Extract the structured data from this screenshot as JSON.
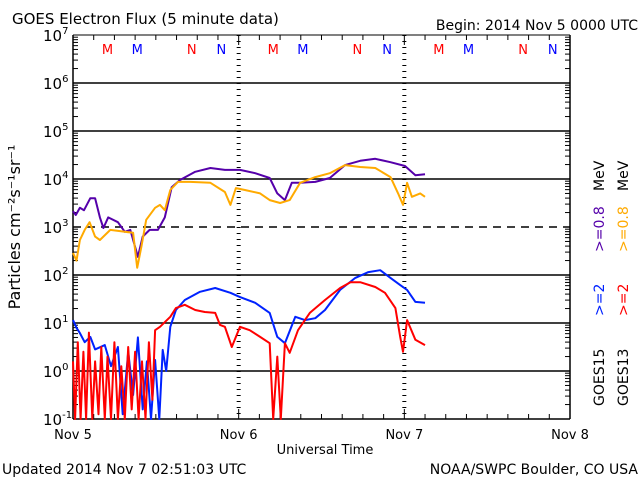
{
  "chart_data": {
    "type": "line",
    "title": "GOES Electron Flux (5 minute data)",
    "begin_label": "Begin: 2014 Nov 5 0000 UTC",
    "xlabel": "Universal Time",
    "ylabel": "Particles cm⁻²s⁻¹sr⁻¹",
    "x_unit": "hours since 2014 Nov 5 0000 UTC",
    "xlim": [
      0,
      72
    ],
    "x_ticks": [
      {
        "h": 0,
        "label": "Nov 5"
      },
      {
        "h": 24,
        "label": "Nov 6"
      },
      {
        "h": 48,
        "label": "Nov 7"
      },
      {
        "h": 72,
        "label": "Nov 8"
      }
    ],
    "y_scale": "log10",
    "ylim_log10": [
      -1,
      7
    ],
    "y_ticks": [
      {
        "exp": 7,
        "label": "7"
      },
      {
        "exp": 6,
        "label": "6"
      },
      {
        "exp": 5,
        "label": "5"
      },
      {
        "exp": 4,
        "label": "4"
      },
      {
        "exp": 3,
        "label": "3"
      },
      {
        "exp": 2,
        "label": "2"
      },
      {
        "exp": 1,
        "label": "1"
      },
      {
        "exp": 0,
        "label": "0"
      },
      {
        "exp": -1,
        "label": "-1"
      }
    ],
    "grid_solid_exp": [
      6,
      5,
      4,
      2,
      1,
      0
    ],
    "grid_dashed_exp": [
      3
    ],
    "markers": [
      {
        "h": 5.0,
        "label": "M",
        "color": "#ff0000"
      },
      {
        "h": 9.3,
        "label": "M",
        "color": "#0000ff"
      },
      {
        "h": 17.2,
        "label": "N",
        "color": "#ff0000"
      },
      {
        "h": 21.5,
        "label": "N",
        "color": "#0000ff"
      },
      {
        "h": 29.0,
        "label": "M",
        "color": "#ff0000"
      },
      {
        "h": 33.3,
        "label": "M",
        "color": "#0000ff"
      },
      {
        "h": 41.2,
        "label": "N",
        "color": "#ff0000"
      },
      {
        "h": 45.5,
        "label": "N",
        "color": "#0000ff"
      },
      {
        "h": 53.0,
        "label": "M",
        "color": "#ff0000"
      },
      {
        "h": 57.3,
        "label": "M",
        "color": "#0000ff"
      },
      {
        "h": 65.2,
        "label": "N",
        "color": "#ff0000"
      },
      {
        "h": 69.5,
        "label": "N",
        "color": "#0000ff"
      }
    ],
    "legend": {
      "placement": "right",
      "columns": [
        {
          "satellite": "GOES15",
          "entries": [
            {
              "label": ">=2",
              "color": "#0022ff"
            },
            {
              "label": ">=0.8",
              "color": "#5500aa"
            }
          ],
          "unit": "MeV"
        },
        {
          "satellite": "GOES13",
          "entries": [
            {
              "label": ">=2",
              "color": "#ff0000"
            },
            {
              "label": ">=0.8",
              "color": "#ffaa00"
            }
          ],
          "unit": "MeV"
        }
      ]
    },
    "series": [
      {
        "name": "GOES15 >=0.8 MeV",
        "color": "#5500aa",
        "h": [
          0,
          0.4,
          1,
          1.6,
          2.5,
          3.2,
          3.9,
          4.4,
          5.1,
          6.5,
          7.5,
          8.3,
          9.4,
          10.1,
          11.1,
          12.3,
          13.3,
          14.3,
          15.5,
          17.7,
          19.9,
          22.0,
          24.2,
          26.4,
          28.5,
          29.6,
          30.7,
          31.7,
          32.9,
          35.1,
          37.2,
          39.4,
          41.6,
          43.8,
          46.0,
          48.1,
          49.6,
          51.0
        ],
        "log10": [
          3.33,
          3.25,
          3.4,
          3.35,
          3.6,
          3.6,
          3.2,
          2.98,
          3.2,
          3.1,
          2.9,
          2.94,
          2.38,
          2.8,
          2.94,
          2.94,
          3.2,
          3.83,
          3.98,
          4.15,
          4.23,
          4.19,
          4.19,
          4.12,
          4.02,
          3.7,
          3.56,
          3.92,
          3.92,
          3.94,
          4.02,
          4.29,
          4.38,
          4.42,
          4.35,
          4.27,
          4.08,
          4.1
        ]
      },
      {
        "name": "GOES13 >=0.8 MeV",
        "color": "#ffaa00",
        "h": [
          0,
          0.5,
          1,
          1.7,
          2.4,
          3.2,
          3.9,
          5.4,
          7.5,
          8.7,
          9.3,
          9.9,
          10.6,
          11.9,
          12.6,
          13.3,
          14.1,
          15.2,
          17.0,
          19.9,
          22.0,
          22.8,
          23.6,
          24.9,
          27.1,
          28.5,
          30.0,
          31.4,
          32.9,
          35.1,
          37.2,
          39.4,
          41.6,
          43.8,
          46.0,
          47.1,
          47.8,
          48.4,
          49.1,
          50.3,
          51.0
        ],
        "log10": [
          2.46,
          2.3,
          2.73,
          2.94,
          3.1,
          2.8,
          2.73,
          2.94,
          2.9,
          2.88,
          2.15,
          2.58,
          3.15,
          3.4,
          3.46,
          3.35,
          3.77,
          3.94,
          3.94,
          3.92,
          3.73,
          3.46,
          3.81,
          3.77,
          3.7,
          3.56,
          3.5,
          3.56,
          3.92,
          4.04,
          4.12,
          4.29,
          4.25,
          4.23,
          4.04,
          3.7,
          3.46,
          3.92,
          3.63,
          3.7,
          3.63
        ]
      },
      {
        "name": "GOES15 >=2 MeV",
        "color": "#0022ff",
        "h": [
          0,
          0.5,
          1,
          1.7,
          2.5,
          3.2,
          4.6,
          5.5,
          6.5,
          7.2,
          8.0,
          8.7,
          9.4,
          10.1,
          10.7,
          11.3,
          11.9,
          12.5,
          13.0,
          13.5,
          14.1,
          14.9,
          16.2,
          18.4,
          20.6,
          22.8,
          24.2,
          26.4,
          28.5,
          29.6,
          30.7,
          32.2,
          33.6,
          35.1,
          36.5,
          38.7,
          40.9,
          42.8,
          44.5,
          46.0,
          47.4,
          48.4,
          49.6,
          51.0
        ],
        "log10": [
          1.06,
          0.9,
          0.79,
          0.6,
          0.71,
          0.45,
          0.54,
          0.1,
          0.5,
          -0.9,
          0.4,
          -0.5,
          0.7,
          -0.8,
          0.2,
          -1,
          0.23,
          -1,
          0.44,
          0.0,
          0.92,
          1.27,
          1.48,
          1.65,
          1.73,
          1.63,
          1.54,
          1.42,
          1.21,
          0.71,
          0.58,
          1.13,
          1.06,
          1.1,
          1.27,
          1.69,
          1.94,
          2.06,
          2.1,
          1.94,
          1.79,
          1.69,
          1.44,
          1.42
        ]
      },
      {
        "name": "GOES13 >=2 MeV",
        "color": "#ff0000",
        "h": [
          0,
          0.3,
          0.7,
          1.1,
          1.5,
          1.9,
          2.3,
          2.8,
          3.2,
          3.7,
          4.1,
          4.6,
          5.0,
          5.5,
          6.0,
          6.5,
          7.0,
          7.5,
          8.0,
          8.5,
          9.0,
          9.5,
          10.0,
          10.5,
          11.0,
          11.5,
          11.9,
          12.6,
          14.1,
          14.9,
          16.2,
          17.7,
          19.1,
          20.6,
          21.3,
          22.0,
          23.0,
          24.2,
          25.6,
          27.1,
          28.5,
          29.0,
          29.6,
          30.1,
          30.7,
          31.4,
          32.6,
          34.3,
          36.5,
          38.7,
          40.2,
          41.6,
          43.8,
          45.2,
          46.7,
          47.4,
          47.8,
          48.4,
          49.6,
          51.0
        ],
        "log10": [
          0.2,
          -1,
          0.6,
          -1,
          0.4,
          -1,
          0.8,
          -1,
          0.2,
          -0.9,
          0.5,
          -1,
          0.3,
          -1,
          0.6,
          -1,
          0.1,
          -1,
          0.5,
          -0.8,
          0.4,
          -1,
          0.2,
          -1,
          0.6,
          -0.6,
          0.85,
          0.92,
          1.13,
          1.31,
          1.38,
          1.27,
          1.23,
          1.21,
          0.96,
          0.92,
          0.5,
          0.92,
          0.85,
          0.71,
          0.58,
          -1,
          0.3,
          -1,
          0.58,
          0.38,
          0.85,
          1.21,
          1.48,
          1.73,
          1.85,
          1.85,
          1.75,
          1.63,
          1.31,
          0.71,
          0.4,
          1.06,
          0.65,
          0.54
        ]
      }
    ]
  },
  "footer": {
    "updated": "Updated 2014 Nov  7 02:51:03 UTC",
    "credit": "NOAA/SWPC Boulder, CO USA"
  }
}
